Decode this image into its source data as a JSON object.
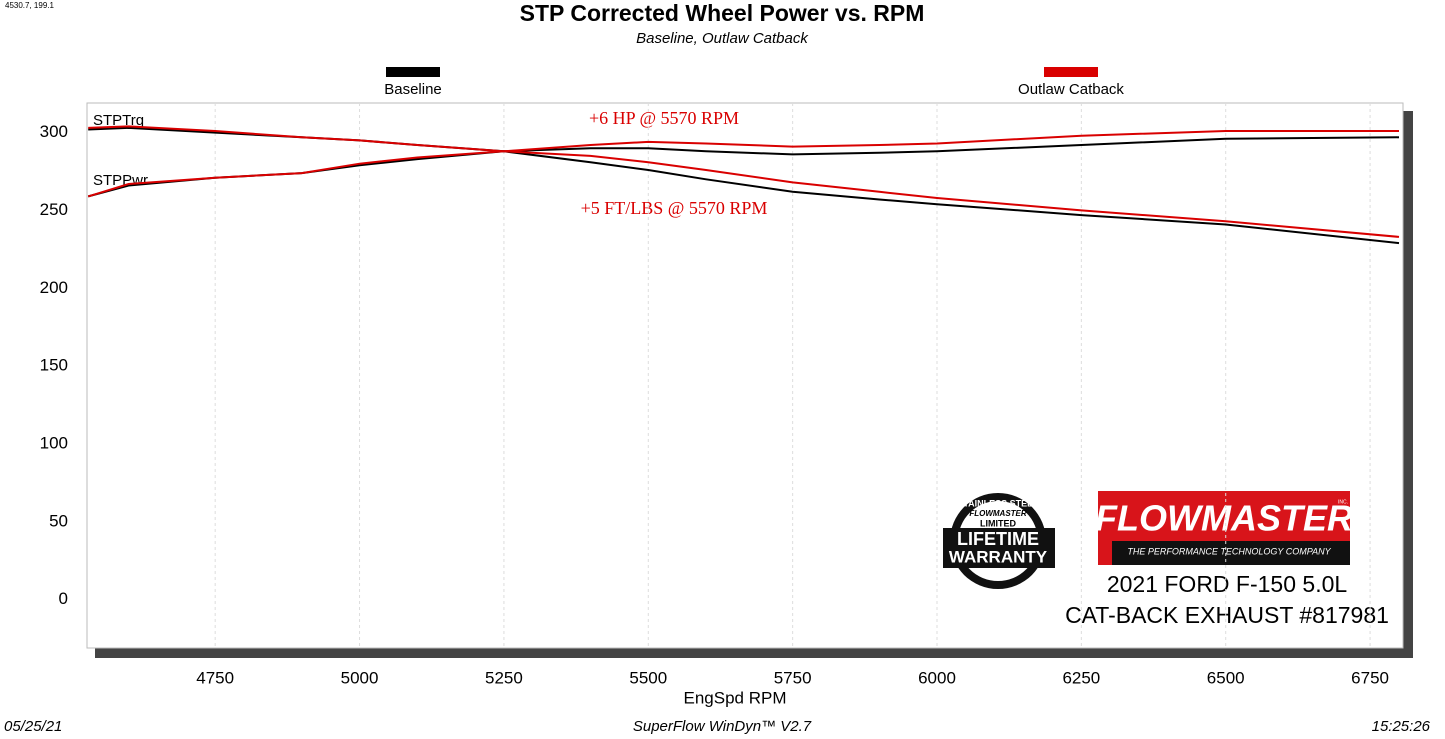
{
  "chart_data": {
    "type": "line",
    "title": "STP Corrected Wheel Power vs. RPM",
    "subtitle": "Baseline, Outlaw Catback",
    "cursor_readout": "4530.7, 199.1",
    "x_label": "EngSpd  RPM",
    "curve_labels": {
      "torque": "STPTrq",
      "power": "STPPwr"
    },
    "x": [
      4530,
      4600,
      4750,
      4900,
      5000,
      5100,
      5250,
      5400,
      5500,
      5600,
      5750,
      5900,
      6000,
      6250,
      6500,
      6800
    ],
    "series": [
      {
        "name": "Baseline",
        "color": "#000000",
        "torque": [
          302,
          303,
          300,
          297,
          295,
          292,
          288,
          281,
          276,
          270,
          262,
          257,
          254,
          247,
          241,
          229
        ],
        "power": [
          259,
          266,
          271,
          274,
          279,
          283,
          288,
          290,
          290,
          288,
          286,
          287,
          288,
          292,
          296,
          297
        ]
      },
      {
        "name": "Outlaw Catback",
        "color": "#d90000",
        "torque": [
          303,
          304,
          301,
          297,
          295,
          292,
          288,
          285,
          281,
          276,
          268,
          262,
          258,
          250,
          243,
          233
        ],
        "power": [
          259,
          267,
          271,
          274,
          280,
          284,
          288,
          292,
          294,
          293,
          291,
          292,
          293,
          298,
          301,
          301
        ]
      }
    ],
    "xlim": [
      4528,
      6807
    ],
    "ylim": [
      -31,
      319
    ],
    "xticks": [
      4750,
      5000,
      5250,
      5500,
      5750,
      6000,
      6250,
      6500,
      6750
    ],
    "yticks": [
      0,
      50,
      100,
      150,
      200,
      250,
      300
    ],
    "grid": true,
    "annotations": [
      "+6 HP @ 5570 RPM",
      "+5 FT/LBS @ 5570 RPM"
    ],
    "vehicle": [
      "2021 FORD F-150 5.0L",
      "CAT-BACK EXHAUST #817981"
    ],
    "logo": {
      "brand": "FLOWMASTER",
      "inc": "INC.",
      "tagline": "THE PERFORMANCE TECHNOLOGY COMPANY"
    },
    "badge": {
      "arc": "STAINLESS STEEL",
      "brand": "FLOWMASTER",
      "line1": "LIMITED",
      "line2": "LIFETIME",
      "line3": "WARRANTY"
    },
    "footer": {
      "date": "05/25/21",
      "software": "SuperFlow WinDyn™  V2.7",
      "time": "15:25:26"
    }
  }
}
